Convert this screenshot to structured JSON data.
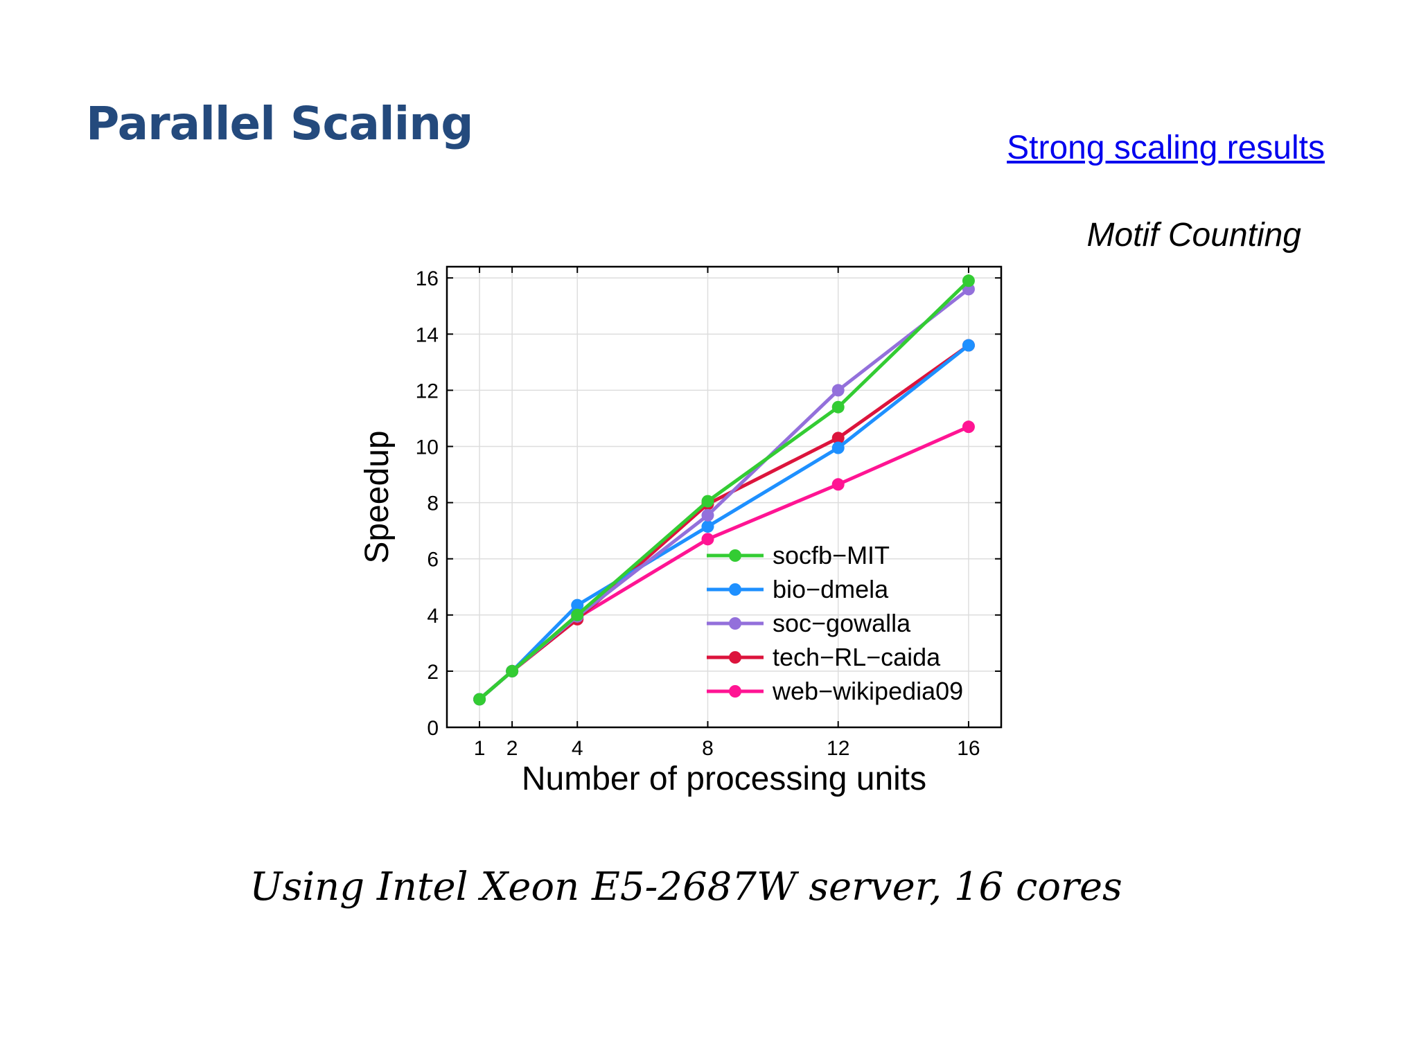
{
  "slide": {
    "title": "Parallel Scaling",
    "link_text": "Strong scaling results",
    "subtitle": "Motif Counting",
    "caption": "Using Intel Xeon E5-2687W server, 16 cores"
  },
  "chart_data": {
    "type": "line",
    "title": "",
    "xlabel": "Number of processing units",
    "ylabel": "Speedup",
    "x": [
      1,
      2,
      4,
      8,
      12,
      16
    ],
    "x_ticks": [
      1,
      2,
      4,
      8,
      12,
      16
    ],
    "y_ticks": [
      0,
      2,
      4,
      6,
      8,
      10,
      12,
      14,
      16
    ],
    "xlim": [
      0,
      17
    ],
    "ylim": [
      0,
      16.4
    ],
    "grid": true,
    "legend_position": "bottom-right",
    "series": [
      {
        "name": "socfb−MIT",
        "color": "#33cc33",
        "values": [
          1,
          2,
          4.0,
          8.05,
          11.4,
          15.9
        ]
      },
      {
        "name": "bio−dmela",
        "color": "#1e90ff",
        "values": [
          1,
          2,
          4.35,
          7.15,
          9.95,
          13.6
        ]
      },
      {
        "name": "soc−gowalla",
        "color": "#9370db",
        "values": [
          1,
          2,
          3.95,
          7.55,
          12.0,
          15.6
        ]
      },
      {
        "name": "tech−RL−caida",
        "color": "#dc143c",
        "values": [
          1,
          2,
          3.85,
          7.95,
          10.3,
          13.6
        ]
      },
      {
        "name": "web−wikipedia09",
        "color": "#ff1493",
        "values": [
          1,
          2,
          3.9,
          6.7,
          8.65,
          10.7
        ]
      }
    ],
    "draw_order": [
      4,
      3,
      1,
      2,
      0
    ]
  }
}
